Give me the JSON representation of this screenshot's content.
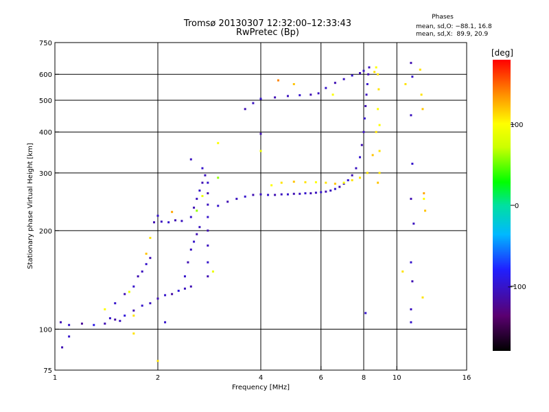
{
  "header": {
    "title_line1": "Tromsø 20130307 12:32:00–12:33:43",
    "title_line2": "RwPretec (Bp)",
    "stats_title": "Phases",
    "stats_o": "mean, sd,O: −88.1, 16.8",
    "stats_x": "mean, sd,X:  89.9, 20.9"
  },
  "colorbar": {
    "unit": "[deg]",
    "ticks": [
      {
        "value": 100,
        "label": "100"
      },
      {
        "value": 0,
        "label": "0"
      },
      {
        "value": -100,
        "label": "−100"
      }
    ],
    "range": [
      -180,
      180
    ]
  },
  "chart_data": {
    "type": "scatter",
    "xlabel": "Frequency [MHz]",
    "ylabel": "Stationary phase Virtual Height [km]",
    "xscale": "log",
    "yscale": "log",
    "xlim": [
      1,
      16
    ],
    "ylim": [
      75,
      750
    ],
    "xticks": [
      {
        "value": 1,
        "label": "1"
      },
      {
        "value": 2,
        "label": "2"
      },
      {
        "value": 4,
        "label": "4"
      },
      {
        "value": 6,
        "label": "6"
      },
      {
        "value": 8,
        "label": "8"
      },
      {
        "value": 10,
        "label": "10"
      },
      {
        "value": 16,
        "label": "16"
      }
    ],
    "yticks": [
      {
        "value": 75,
        "label": "75"
      },
      {
        "value": 100,
        "label": "100"
      },
      {
        "value": 200,
        "label": "200"
      },
      {
        "value": 300,
        "label": "300"
      },
      {
        "value": 400,
        "label": "400"
      },
      {
        "value": 500,
        "label": "500"
      },
      {
        "value": 600,
        "label": "600"
      },
      {
        "value": 750,
        "label": "750"
      }
    ],
    "grid_x": [
      2,
      4,
      6,
      8,
      10
    ],
    "grid_y": [
      100,
      200,
      300,
      400,
      500,
      600
    ],
    "color_by": "phase [deg]",
    "series": [
      {
        "points": [
          [
            1.04,
            105,
            -110
          ],
          [
            1.1,
            103,
            -100
          ],
          [
            1.2,
            104,
            -120
          ],
          [
            1.3,
            103,
            -90
          ],
          [
            1.4,
            104,
            -110
          ],
          [
            1.45,
            108,
            -100
          ],
          [
            1.5,
            107,
            -115
          ],
          [
            1.55,
            106,
            -105
          ],
          [
            1.6,
            110,
            -95
          ],
          [
            1.7,
            114,
            -110
          ],
          [
            1.8,
            118,
            -100
          ],
          [
            1.9,
            120,
            -105
          ],
          [
            2.0,
            124,
            -110
          ],
          [
            2.1,
            127,
            -100
          ],
          [
            2.2,
            128,
            -115
          ],
          [
            2.3,
            131,
            -95
          ],
          [
            2.4,
            133,
            -105
          ],
          [
            2.5,
            135,
            -110
          ],
          [
            1.5,
            120,
            -100
          ],
          [
            1.6,
            128,
            -110
          ],
          [
            1.7,
            135,
            -100
          ],
          [
            1.75,
            145,
            -110
          ],
          [
            1.8,
            150,
            -105
          ],
          [
            1.85,
            158,
            -100
          ],
          [
            1.9,
            165,
            -110
          ],
          [
            1.65,
            130,
            90
          ],
          [
            1.7,
            110,
            110
          ],
          [
            1.4,
            115,
            100
          ],
          [
            1.85,
            170,
            120
          ],
          [
            1.95,
            212,
            -110
          ],
          [
            2.05,
            213,
            -105
          ],
          [
            2.15,
            212,
            -100
          ],
          [
            2.25,
            215,
            -110
          ],
          [
            2.35,
            214,
            -105
          ],
          [
            2.0,
            222,
            -100
          ],
          [
            2.4,
            145,
            -100
          ],
          [
            2.45,
            160,
            -110
          ],
          [
            2.5,
            175,
            -105
          ],
          [
            2.55,
            185,
            -100
          ],
          [
            2.6,
            195,
            -110
          ],
          [
            2.65,
            205,
            -105
          ],
          [
            2.5,
            220,
            -100
          ],
          [
            2.55,
            235,
            -110
          ],
          [
            2.6,
            250,
            -105
          ],
          [
            2.65,
            265,
            -100
          ],
          [
            2.7,
            280,
            -110
          ],
          [
            2.75,
            295,
            -105
          ],
          [
            2.8,
            280,
            -100
          ],
          [
            2.8,
            260,
            -110
          ],
          [
            2.8,
            240,
            -105
          ],
          [
            2.8,
            220,
            -100
          ],
          [
            2.8,
            200,
            -110
          ],
          [
            2.8,
            180,
            -105
          ],
          [
            2.8,
            160,
            -100
          ],
          [
            2.8,
            145,
            -110
          ],
          [
            2.6,
            230,
            60
          ],
          [
            2.7,
            255,
            90
          ],
          [
            3.0,
            238,
            -100
          ],
          [
            3.2,
            245,
            -110
          ],
          [
            3.4,
            250,
            -105
          ],
          [
            3.6,
            254,
            -100
          ],
          [
            3.8,
            257,
            -110
          ],
          [
            4.0,
            258,
            -105
          ],
          [
            4.2,
            257,
            -100
          ],
          [
            4.4,
            257,
            -110
          ],
          [
            4.6,
            258,
            -105
          ],
          [
            4.8,
            258,
            -100
          ],
          [
            5.0,
            259,
            -110
          ],
          [
            5.2,
            259,
            -105
          ],
          [
            5.4,
            260,
            -100
          ],
          [
            5.6,
            260,
            -110
          ],
          [
            5.8,
            261,
            -105
          ],
          [
            6.0,
            262,
            -100
          ],
          [
            6.2,
            263,
            -110
          ],
          [
            6.4,
            265,
            -105
          ],
          [
            6.6,
            268,
            -100
          ],
          [
            6.8,
            272,
            -110
          ],
          [
            7.0,
            278,
            -105
          ],
          [
            7.2,
            285,
            -100
          ],
          [
            7.4,
            295,
            -110
          ],
          [
            7.6,
            310,
            -105
          ],
          [
            7.8,
            335,
            -100
          ],
          [
            7.9,
            365,
            -110
          ],
          [
            8.0,
            400,
            -105
          ],
          [
            8.05,
            440,
            -100
          ],
          [
            8.1,
            480,
            -110
          ],
          [
            8.15,
            520,
            -105
          ],
          [
            8.2,
            560,
            -100
          ],
          [
            8.25,
            600,
            -110
          ],
          [
            8.3,
            630,
            -105
          ],
          [
            4.3,
            275,
            100
          ],
          [
            4.6,
            280,
            110
          ],
          [
            5.0,
            282,
            120
          ],
          [
            5.4,
            281,
            110
          ],
          [
            5.8,
            281,
            100
          ],
          [
            6.2,
            280,
            110
          ],
          [
            6.6,
            278,
            120
          ],
          [
            7.0,
            280,
            100
          ],
          [
            7.4,
            285,
            110
          ],
          [
            7.8,
            290,
            110
          ],
          [
            8.2,
            300,
            110
          ],
          [
            8.5,
            340,
            120
          ],
          [
            8.7,
            400,
            110
          ],
          [
            8.8,
            470,
            100
          ],
          [
            8.85,
            540,
            110
          ],
          [
            8.8,
            600,
            110
          ],
          [
            8.7,
            630,
            100
          ],
          [
            8.6,
            610,
            110
          ],
          [
            8.8,
            280,
            120
          ],
          [
            8.9,
            300,
            110
          ],
          [
            8.9,
            350,
            110
          ],
          [
            8.9,
            420,
            100
          ],
          [
            3.6,
            470,
            -110
          ],
          [
            3.8,
            490,
            -105
          ],
          [
            4.0,
            505,
            -100
          ],
          [
            4.4,
            510,
            -110
          ],
          [
            4.8,
            515,
            -105
          ],
          [
            5.2,
            518,
            -100
          ],
          [
            5.6,
            520,
            -110
          ],
          [
            5.9,
            525,
            -105
          ],
          [
            6.2,
            545,
            -100
          ],
          [
            6.6,
            565,
            -110
          ],
          [
            7.0,
            580,
            -105
          ],
          [
            7.4,
            595,
            -100
          ],
          [
            7.8,
            605,
            -110
          ],
          [
            8.0,
            615,
            -105
          ],
          [
            5.0,
            560,
            120
          ],
          [
            6.5,
            520,
            100
          ],
          [
            4.5,
            575,
            140
          ],
          [
            11.0,
            650,
            -110
          ],
          [
            11.1,
            590,
            -100
          ],
          [
            11.0,
            450,
            -105
          ],
          [
            11.1,
            320,
            -100
          ],
          [
            11.0,
            250,
            -110
          ],
          [
            11.2,
            210,
            -105
          ],
          [
            11.0,
            160,
            -100
          ],
          [
            11.1,
            140,
            -110
          ],
          [
            11.0,
            115,
            -105
          ],
          [
            11.0,
            105,
            -100
          ],
          [
            11.8,
            520,
            110
          ],
          [
            11.9,
            470,
            120
          ],
          [
            11.7,
            620,
            110
          ],
          [
            12.0,
            260,
            130
          ],
          [
            12.0,
            250,
            100
          ],
          [
            12.1,
            230,
            120
          ],
          [
            11.9,
            125,
            110
          ],
          [
            10.6,
            560,
            110
          ],
          [
            10.4,
            150,
            110
          ],
          [
            8.1,
            112,
            -100
          ],
          [
            1.05,
            88,
            -110
          ],
          [
            1.1,
            95,
            -100
          ],
          [
            1.7,
            97,
            110
          ],
          [
            2.0,
            80,
            110
          ],
          [
            2.1,
            105,
            -100
          ],
          [
            2.5,
            330,
            -105
          ],
          [
            2.7,
            310,
            -100
          ],
          [
            4.0,
            395,
            -110
          ],
          [
            4.0,
            350,
            90
          ],
          [
            3.0,
            290,
            60
          ],
          [
            3.0,
            370,
            100
          ],
          [
            2.9,
            150,
            90
          ],
          [
            1.9,
            190,
            110
          ],
          [
            2.2,
            228,
            130
          ]
        ]
      }
    ]
  }
}
